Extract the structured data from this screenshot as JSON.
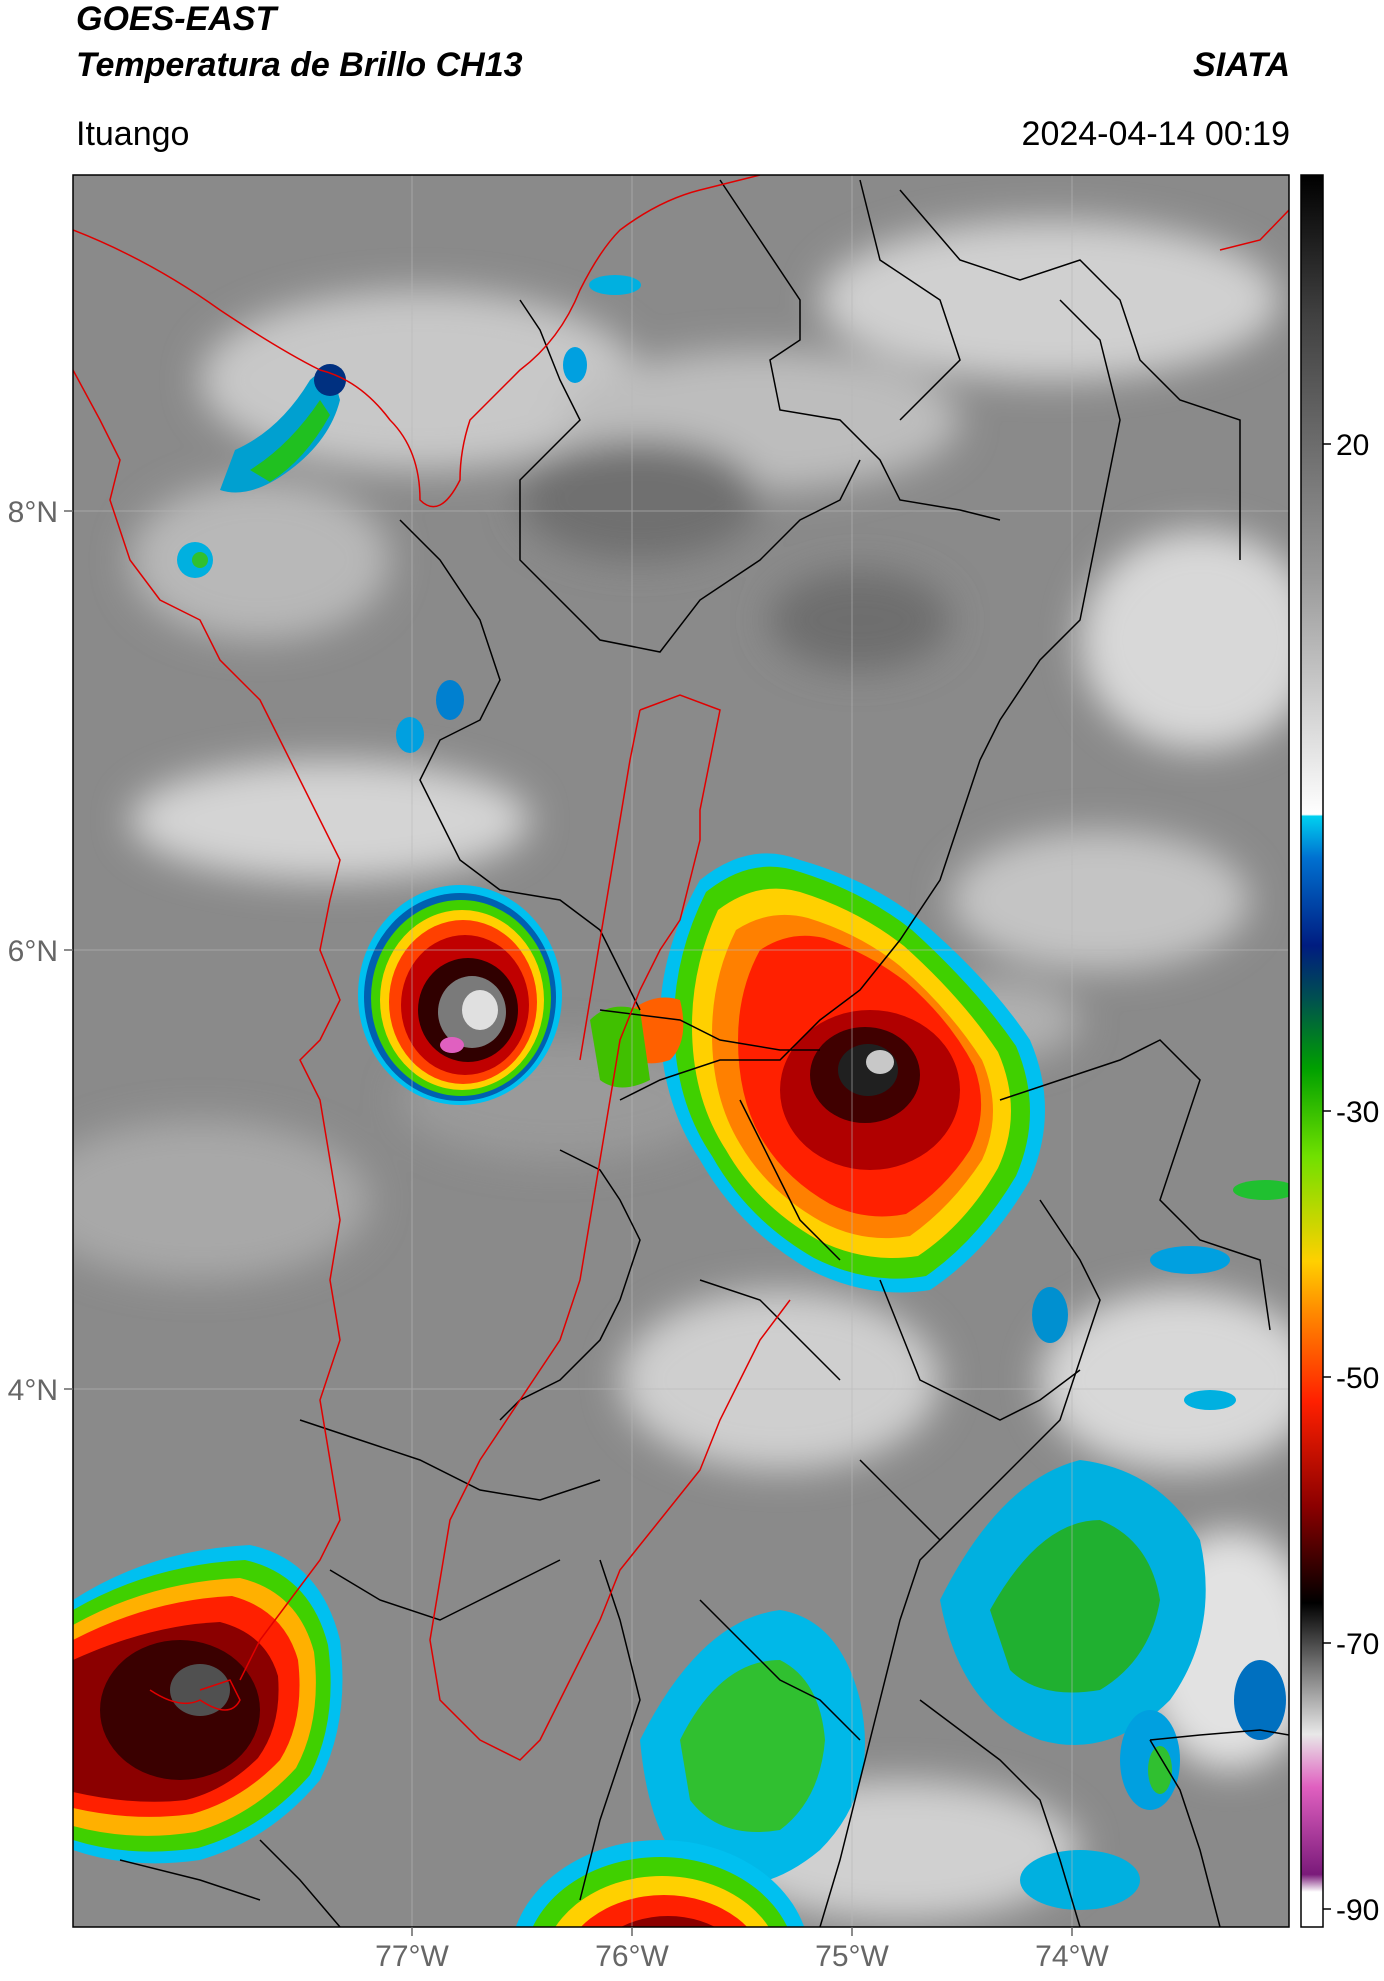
{
  "header": {
    "line1": "GOES-EAST",
    "line2": "Temperatura de Brillo CH13",
    "org": "SIATA",
    "location": "Ituango",
    "datetime": "2024-04-14 00:19"
  },
  "map": {
    "lat_ticks": [
      "8°N",
      "6°N",
      "4°N"
    ],
    "lon_ticks": [
      "77°W",
      "76°W",
      "75°W",
      "74°W"
    ],
    "border_colors": {
      "department": "#e00000",
      "municipal": "#000000"
    }
  },
  "colorbar": {
    "ticks": [
      "20",
      "-30",
      "-50",
      "-70",
      "-90"
    ],
    "range": [
      -90,
      45
    ],
    "stops": [
      "#ffffff",
      "#8a1f8a",
      "#e060c0",
      "#c0c0c0",
      "#000000",
      "#8b0000",
      "#ff2000",
      "#ff8800",
      "#ffd000",
      "#80e000",
      "#00b000",
      "#006040",
      "#002080",
      "#0070d0",
      "#00d0f0",
      "#ffffff",
      "#808080",
      "#303030",
      "#000000"
    ]
  }
}
